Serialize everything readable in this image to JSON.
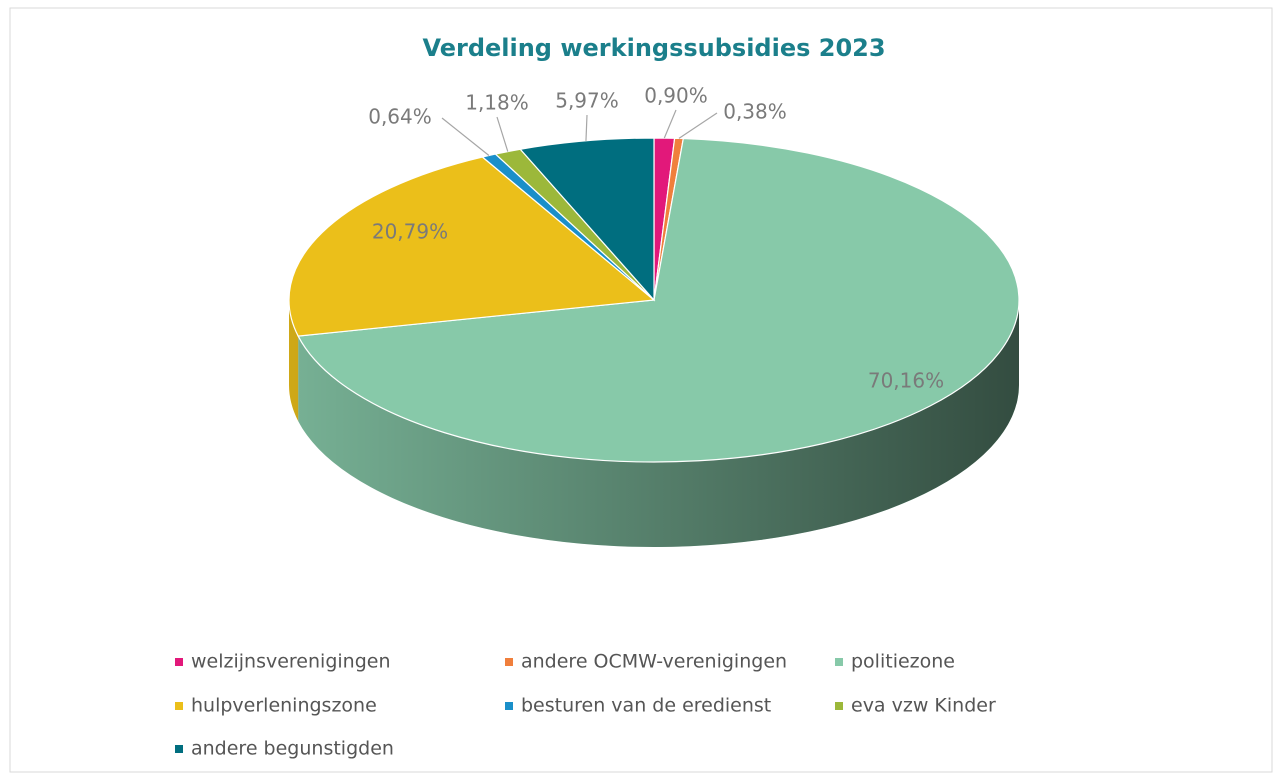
{
  "chart_data": {
    "type": "pie3d",
    "title": "Verdeling werkingssubsidies 2023",
    "categories": [
      "welzijnsverenigingen",
      "andere OCMW-verenigingen",
      "politiezone",
      "hulpverleningszone",
      "besturen van de eredienst",
      "eva vzw Kinder",
      "andere begunstigden"
    ],
    "values": [
      0.9,
      0.38,
      70.16,
      20.79,
      0.64,
      1.18,
      5.97
    ],
    "value_labels": [
      "0,90%",
      "0,38%",
      "70,16%",
      "20,79%",
      "0,64%",
      "1,18%",
      "5,97%"
    ],
    "colors": [
      "#e2187a",
      "#f07f3c",
      "#87c9a9",
      "#ebbf1a",
      "#1a8fc9",
      "#9cb83a",
      "#006e7f"
    ],
    "legend": "bottom"
  }
}
